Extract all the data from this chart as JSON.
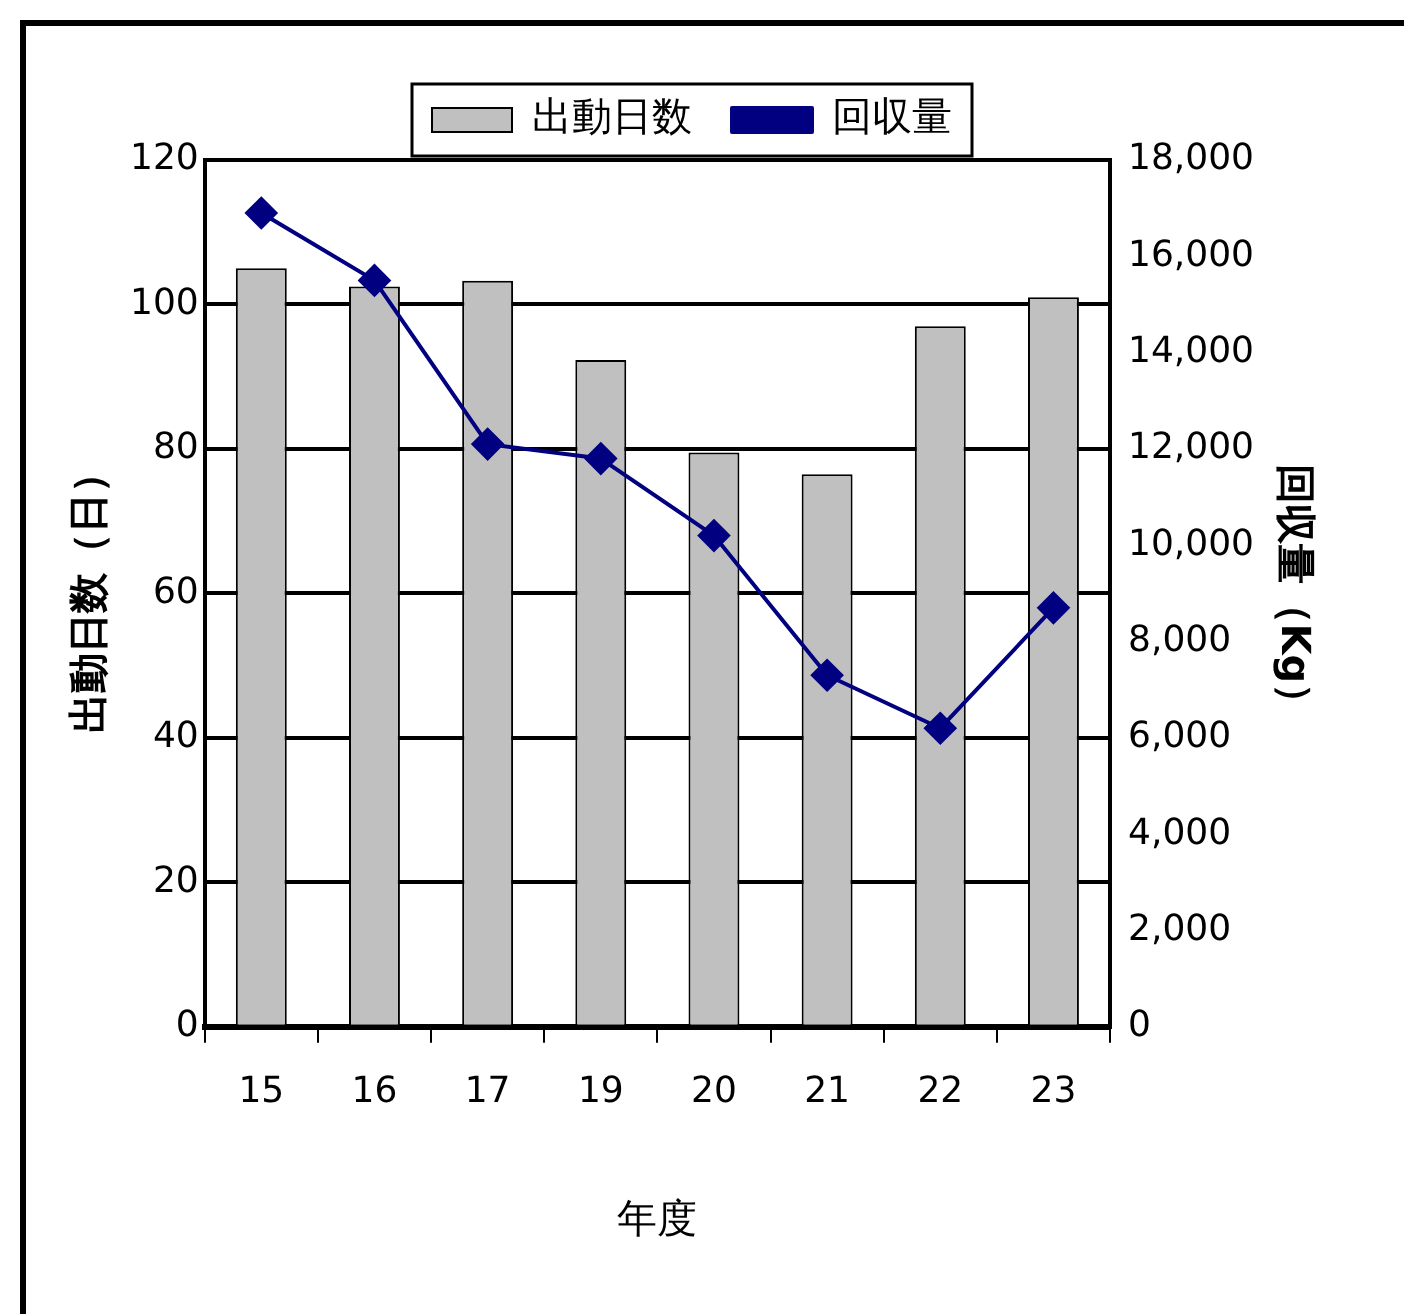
{
  "chart_data": {
    "type": "bar",
    "xlabel": "年度",
    "ylabel": "出動日数（日）",
    "y2label": "回収量（Kg）",
    "categories": [
      "15",
      "16",
      "17",
      "19",
      "20",
      "21",
      "22",
      "23"
    ],
    "series": [
      {
        "name": "出動日数",
        "color": "#c0c0c0",
        "values": [
          105,
          102.5,
          103.3,
          92.3,
          79.5,
          76.5,
          97,
          101
        ]
      },
      {
        "name": "回収量",
        "type": "line",
        "axis": "y2",
        "color": "#000080",
        "marker": "diamond",
        "values": [
          16900,
          15500,
          12100,
          11800,
          10200,
          7300,
          6200,
          8700
        ]
      }
    ],
    "ylim": [
      0,
      120
    ],
    "yticks": [
      0,
      20,
      40,
      60,
      80,
      100,
      120
    ],
    "y2lim": [
      0,
      18000
    ],
    "y2ticks": [
      0,
      {
        "value": 2000,
        "label": "2,000"
      },
      {
        "value": 4000,
        "label": "4,000"
      },
      {
        "value": 6000,
        "label": "6,000"
      },
      {
        "value": 8000,
        "label": "8,000"
      },
      {
        "value": 10000,
        "label": "10,000"
      },
      {
        "value": 12000,
        "label": "12,000"
      },
      {
        "value": 14000,
        "label": "14,000"
      },
      {
        "value": 16000,
        "label": "16,000"
      },
      {
        "value": 18000,
        "label": "18,000"
      }
    ],
    "grid": "y",
    "legend": "top"
  }
}
